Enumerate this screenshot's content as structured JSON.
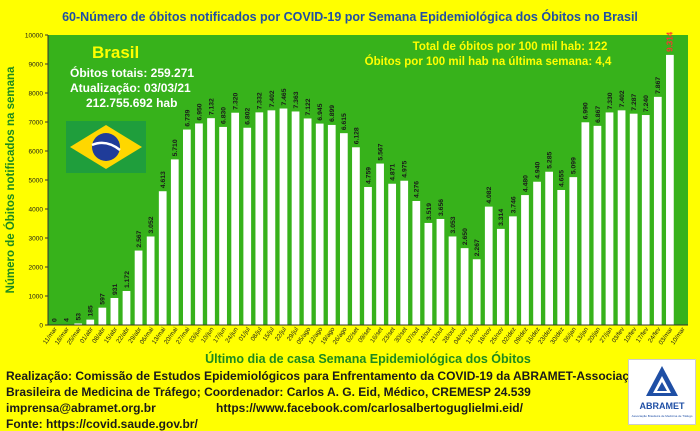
{
  "title": "60-Número de óbitos notificados por COVID-19 por Semana Epidemiológica dos Óbitos  no Brasil",
  "info_box": {
    "country": "Brasil",
    "total": "Óbitos totais: 259.271",
    "updated": "Atualização: 03/03/21",
    "population": "212.755.692 hab"
  },
  "stats": {
    "per100k": "Total de óbitos  por 100 mil hab: 122",
    "per100k_last_week": "Óbitos por 100 mil hab na última semana: 4,4"
  },
  "footer": {
    "line1": "Realização: Comissão de Estudos Epidemiológicos para Enfrentamento da COVID-19 da ABRAMET-Associação",
    "line2": "Brasileira de Medicina de Tráfego; Coordenador: Carlos A. G. Eid, Médico, CREMESP 24.539",
    "email": "imprensa@abramet.org.br",
    "facebook": "https://www.facebook.com/carlosalbertoguglielmi.eid/",
    "source": "Fonte: https://covid.saude.gov.br/"
  },
  "logo": {
    "text": "ABRAMET",
    "subtext": "Associação Brasileira de Medicina de Tráfego"
  },
  "colors": {
    "background": "#ffff00",
    "plot_background": "#37b21b",
    "bar": "#ffffff",
    "title": "#1f4fa5",
    "green_text": "#1e8a1e",
    "stats_text": "#1e8a1e",
    "highlight_bar": "#ff3333",
    "flag_green": "#1f9e3c",
    "flag_yellow": "#ffd700",
    "flag_blue": "#1f3c99"
  },
  "chart_data": {
    "type": "bar",
    "title": "60-Número de óbitos notificados por COVID-19 por Semana Epidemiológica dos Óbitos  no Brasil",
    "xlabel": "Último dia de casa Semana Epidemiológica dos Óbitos",
    "ylabel": "Número de Óbitos notificados na semana",
    "ylim": [
      0,
      10000
    ],
    "yticks": [
      0,
      1000,
      2000,
      3000,
      4000,
      5000,
      6000,
      7000,
      8000,
      9000,
      10000
    ],
    "grid": false,
    "categories": [
      "11/mar",
      "18/mar",
      "25/mar",
      "01/abr",
      "08/abr",
      "15/abr",
      "22/abr",
      "29/abr",
      "06/mai",
      "13/mai",
      "20/mai",
      "27/mai",
      "03/jun",
      "10/jun",
      "17/jun",
      "24/jun",
      "01/jul",
      "08/jul",
      "15/jul",
      "22/jul",
      "29/jul",
      "05/ago",
      "12/ago",
      "19/ago",
      "26/ago",
      "02/set",
      "09/set",
      "16/set",
      "23/set",
      "30/set",
      "07/out",
      "14/out",
      "21/out",
      "28/out",
      "04/nov",
      "11/nov",
      "18/nov",
      "25/nov",
      "02/dez",
      "09/dez",
      "16/dez",
      "23/dez",
      "30/dez",
      "06/jan",
      "13/jan",
      "20/jan",
      "27/jan",
      "03/fev",
      "10/fev",
      "17/fev",
      "24/fev",
      "03/mar",
      "10/mar"
    ],
    "values": [
      0,
      4,
      53,
      185,
      597,
      931,
      1172,
      2567,
      3052,
      4613,
      5710,
      6739,
      6950,
      7132,
      6830,
      7320,
      6802,
      7332,
      7402,
      7465,
      7363,
      7122,
      6945,
      6899,
      6615,
      6128,
      4759,
      5567,
      4871,
      4975,
      4276,
      3519,
      3656,
      3053,
      2650,
      2267,
      4082,
      3314,
      3746,
      4480,
      4940,
      5285,
      4655,
      5099,
      6990,
      6867,
      7330,
      7402,
      7287,
      7240,
      7867,
      9314,
      null
    ],
    "labels": [
      "0",
      "4",
      "53",
      "185",
      "597",
      "931",
      "1.172",
      "2.567",
      "3.052",
      "4.613",
      "5.710",
      "6.739",
      "6.950",
      "7.132",
      "6.830",
      "7.320",
      "6.802",
      "7.332",
      "7.402",
      "7.465",
      "7.363",
      "7.122",
      "6.945",
      "6.899",
      "6.615",
      "6.128",
      "4.759",
      "5.567",
      "4.871",
      "4.975",
      "4.276",
      "3.519",
      "3.656",
      "3.053",
      "2.650",
      "2.267",
      "4.082",
      "3.314",
      "3.746",
      "4.480",
      "4.940",
      "5.285",
      "4.655",
      "5.099",
      "6.990",
      "6.867",
      "7.330",
      "7.402",
      "7.287",
      "7.240",
      "7.867",
      "9.314",
      ""
    ],
    "highlight_index": 51
  }
}
